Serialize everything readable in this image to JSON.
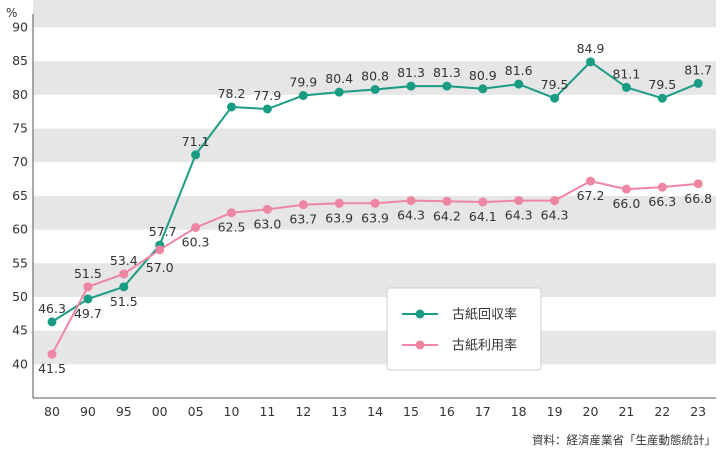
{
  "chart_data": {
    "type": "line",
    "unit_label": "%",
    "categories": [
      "80",
      "90",
      "95",
      "00",
      "05",
      "10",
      "11",
      "12",
      "13",
      "14",
      "15",
      "16",
      "17",
      "18",
      "19",
      "20",
      "21",
      "22",
      "23"
    ],
    "ylim": [
      35,
      92
    ],
    "yticks": [
      40,
      45,
      50,
      55,
      60,
      65,
      70,
      75,
      80,
      85,
      90
    ],
    "grid": "alternating horizontal bands",
    "legend_placement": "lower-center",
    "series": [
      {
        "name": "古紙回収率",
        "color": "#1a9c84",
        "values": [
          46.3,
          49.7,
          51.5,
          57.7,
          71.1,
          78.2,
          77.9,
          79.9,
          80.4,
          80.8,
          81.3,
          81.3,
          80.9,
          81.6,
          79.5,
          84.9,
          81.1,
          79.5,
          81.7
        ],
        "labels": [
          "46.3",
          "49.7",
          "51.5",
          "57.7",
          "71.1",
          "78.2",
          "77.9",
          "79.9",
          "80.4",
          "80.8",
          "81.3",
          "81.3",
          "80.9",
          "81.6",
          "79.5",
          "84.9",
          "81.1",
          "79.5",
          "81.7"
        ]
      },
      {
        "name": "古紙利用率",
        "color": "#ee86a2",
        "values": [
          41.5,
          51.5,
          53.4,
          57.0,
          60.3,
          62.5,
          63.0,
          63.7,
          63.9,
          63.9,
          64.3,
          64.2,
          64.1,
          64.3,
          64.3,
          67.2,
          66.0,
          66.3,
          66.8
        ],
        "labels": [
          "41.5",
          "51.5",
          "53.4",
          "57.0",
          "60.3",
          "62.5",
          "63.0",
          "63.7",
          "63.9",
          "63.9",
          "64.3",
          "64.2",
          "64.1",
          "64.3",
          "64.3",
          "67.2",
          "66.0",
          "66.3",
          "66.8"
        ]
      }
    ],
    "source": "資料：経済産業省「生産動態統計」",
    "colors": {
      "band": "#e6e6e6",
      "axis": "#555555"
    }
  }
}
